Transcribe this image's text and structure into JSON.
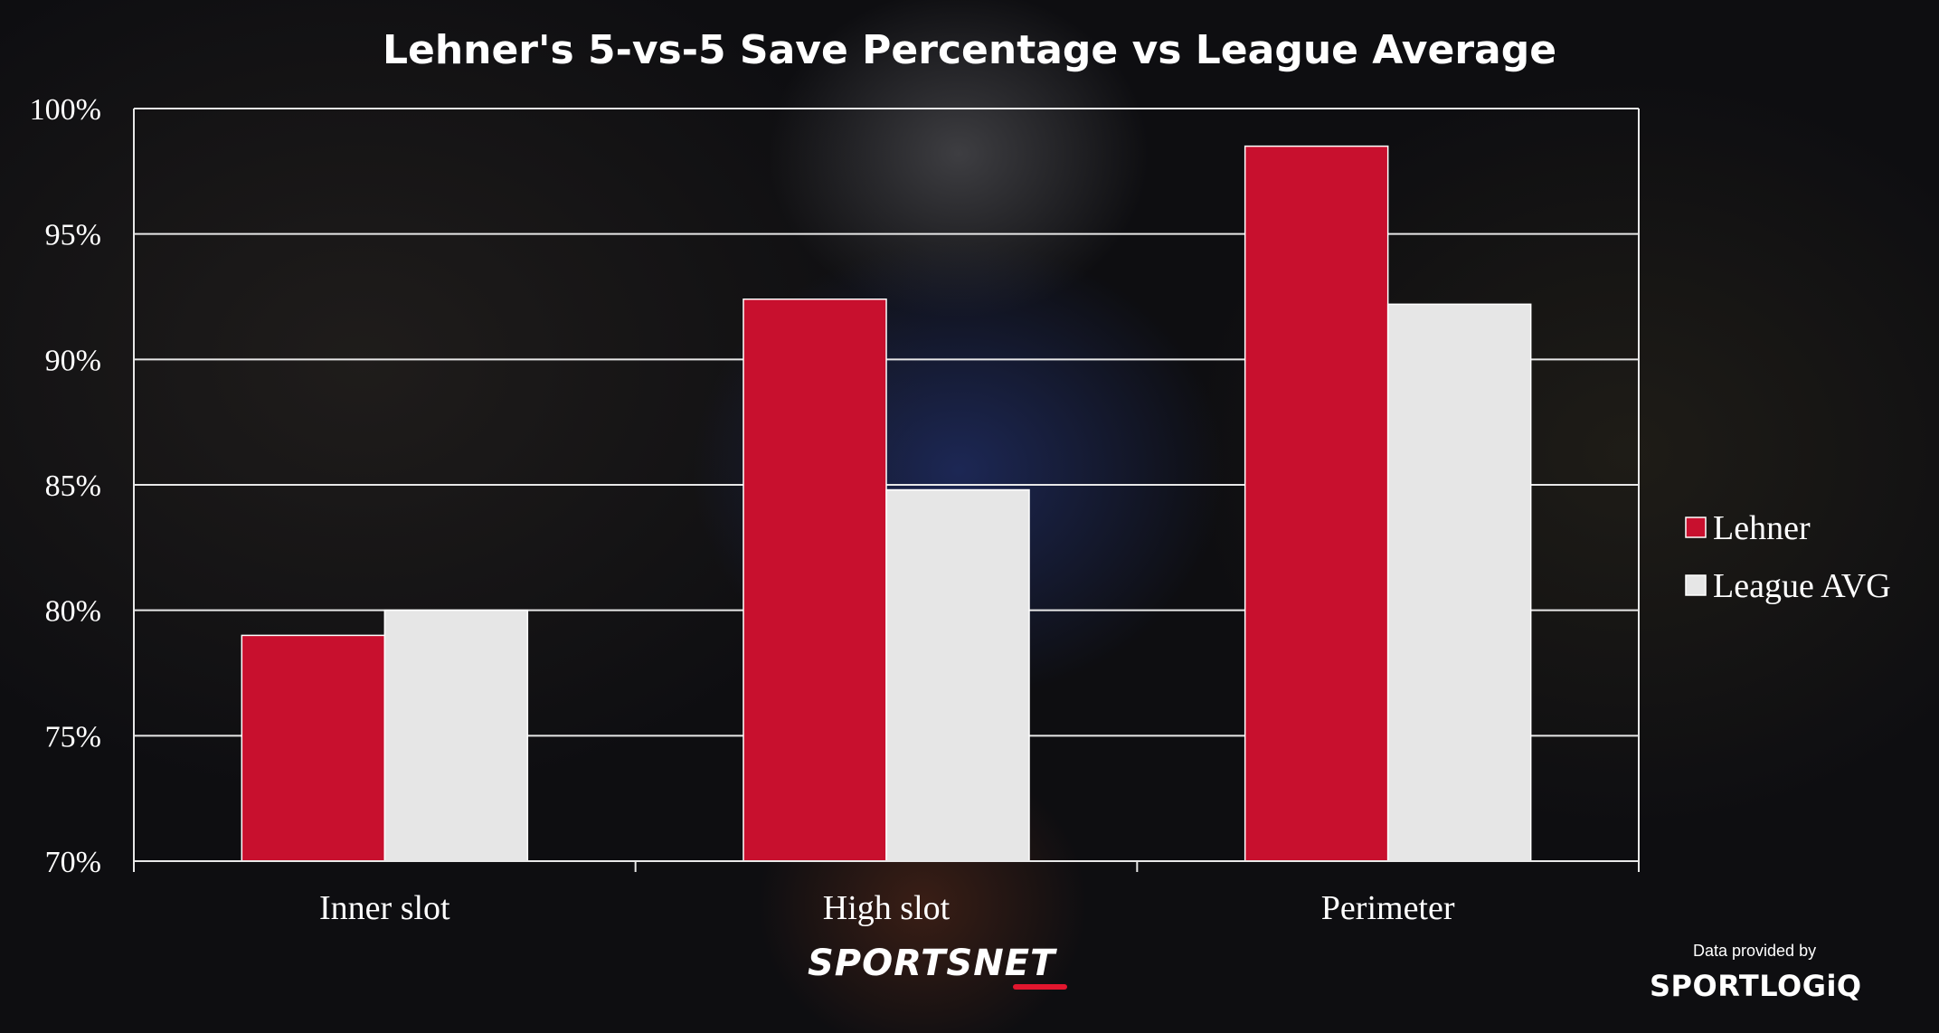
{
  "chart_data": {
    "type": "bar",
    "title": "Lehner's 5-vs-5 Save Percentage vs League Average",
    "categories": [
      "Inner slot",
      "High slot",
      "Perimeter"
    ],
    "series": [
      {
        "name": "Lehner",
        "values": [
          79.0,
          92.4,
          98.5
        ],
        "color": "#c8102e"
      },
      {
        "name": "League AVG",
        "values": [
          80.0,
          84.8,
          92.2
        ],
        "color": "#e6e6e6"
      }
    ],
    "ylim": [
      70,
      100
    ],
    "yticks": [
      "70%",
      "75%",
      "80%",
      "85%",
      "90%",
      "95%",
      "100%"
    ],
    "ytick_values": [
      70,
      75,
      80,
      85,
      90,
      95,
      100
    ],
    "xlabel": "",
    "ylabel": "",
    "grid": true,
    "legend_position": "right"
  },
  "branding": {
    "network": "SPORTSNET",
    "credit_caption": "Data provided by",
    "data_provider": "SPORTLOGiQ"
  }
}
